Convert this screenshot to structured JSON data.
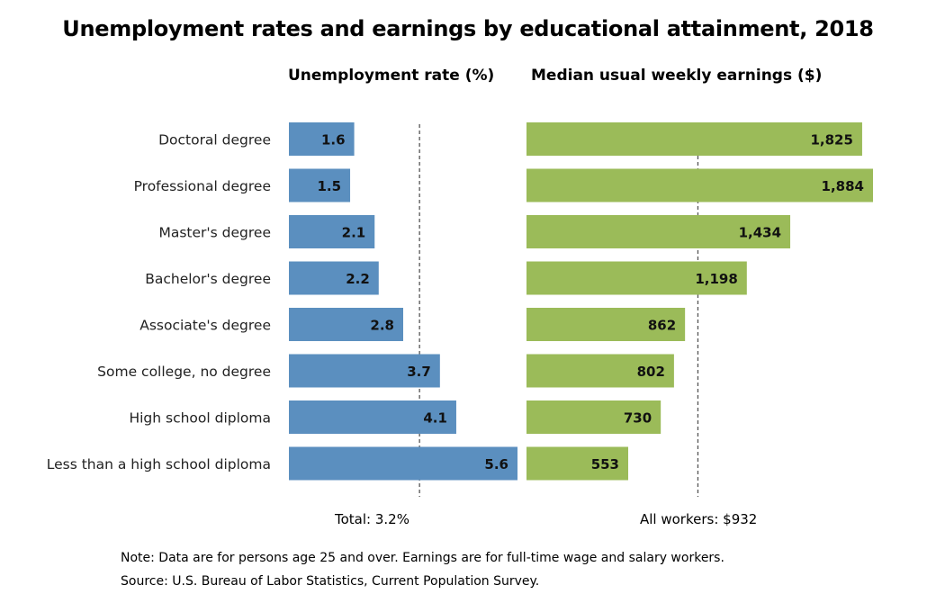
{
  "title": "Unemployment rates and earnings by educational attainment, 2018",
  "left_panel_title": "Unemployment rate (%)",
  "right_panel_title": "Median usual weekly earnings ($)",
  "reference": {
    "unemployment_label": "Total: 3.2%",
    "earnings_label": "All workers: $932"
  },
  "notes": {
    "note": "Note: Data are for persons age 25 and over. Earnings are for full-time wage and salary workers.",
    "source": "Source: U.S. Bureau of Labor Statistics, Current Population Survey."
  },
  "colors": {
    "unemployment_bar": "#5b8fbf",
    "earnings_bar": "#9bbb59",
    "reference_line": "#555555"
  },
  "chart_data": [
    {
      "type": "bar",
      "orientation": "horizontal",
      "title": "Unemployment rate (%)",
      "categories": [
        "Doctoral degree",
        "Professional degree",
        "Master's degree",
        "Bachelor's degree",
        "Associate's degree",
        "Some college, no degree",
        "High school diploma",
        "Less than a high school diploma"
      ],
      "values": [
        1.6,
        1.5,
        2.1,
        2.2,
        2.8,
        3.7,
        4.1,
        5.6
      ],
      "value_labels": [
        "1.6",
        "1.5",
        "2.1",
        "2.2",
        "2.8",
        "3.7",
        "4.1",
        "5.6"
      ],
      "xlim": [
        0,
        5.6
      ],
      "reference_value": 3.2,
      "grid": false
    },
    {
      "type": "bar",
      "orientation": "horizontal",
      "title": "Median usual weekly earnings ($)",
      "categories": [
        "Doctoral degree",
        "Professional degree",
        "Master's degree",
        "Bachelor's degree",
        "Associate's degree",
        "Some college, no degree",
        "High school diploma",
        "Less than a high school diploma"
      ],
      "values": [
        1825,
        1884,
        1434,
        1198,
        862,
        802,
        730,
        553
      ],
      "value_labels": [
        "1,825",
        "1,884",
        "1,434",
        "1,198",
        "862",
        "802",
        "730",
        "553"
      ],
      "xlim": [
        0,
        1884
      ],
      "reference_value": 932,
      "grid": false
    }
  ]
}
